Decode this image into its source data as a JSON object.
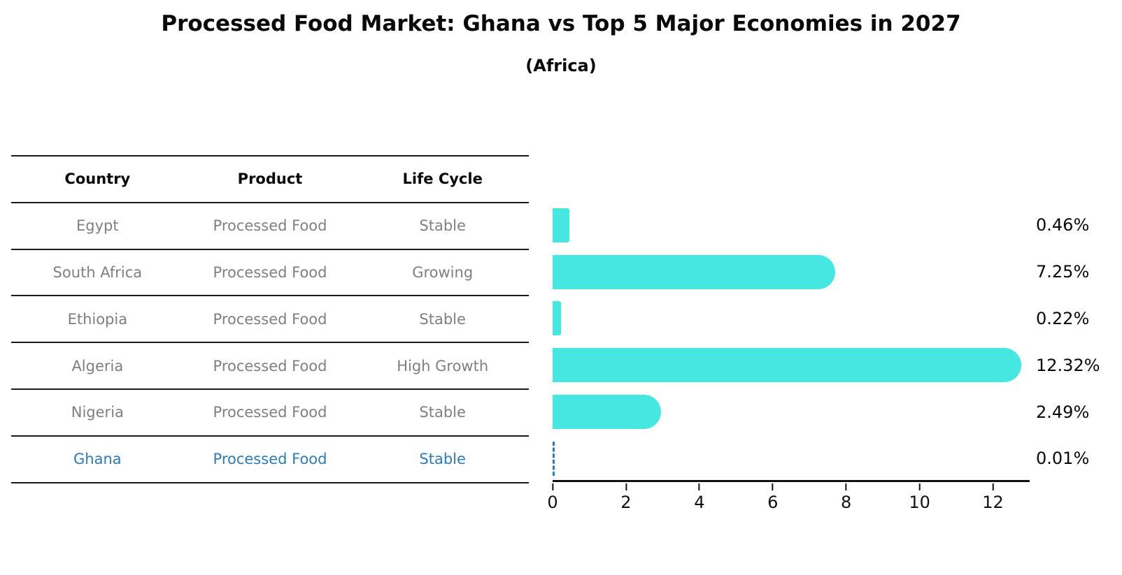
{
  "header": {
    "title": "Processed Food Market: Ghana vs Top 5 Major Economies in 2027",
    "subtitle": "(Africa)"
  },
  "table": {
    "columns": [
      "Country",
      "Product",
      "Life Cycle"
    ],
    "rows": [
      {
        "country": "Egypt",
        "product": "Processed Food",
        "life_cycle": "Stable",
        "highlight": false
      },
      {
        "country": "South Africa",
        "product": "Processed Food",
        "life_cycle": "Growing",
        "highlight": false
      },
      {
        "country": "Ethiopia",
        "product": "Processed Food",
        "life_cycle": "Stable",
        "highlight": false
      },
      {
        "country": "Algeria",
        "product": "Processed Food",
        "life_cycle": "High Growth",
        "highlight": false
      },
      {
        "country": "Nigeria",
        "product": "Processed Food",
        "life_cycle": "Stable",
        "highlight": false
      },
      {
        "country": "Ghana",
        "product": "Processed Food",
        "life_cycle": "Stable",
        "highlight": true
      }
    ]
  },
  "chart_data": {
    "type": "bar",
    "orientation": "horizontal",
    "title": "Processed Food Market: Ghana vs Top 5 Major Economies in 2027",
    "subtitle": "(Africa)",
    "categories": [
      "Egypt",
      "South Africa",
      "Ethiopia",
      "Algeria",
      "Nigeria",
      "Ghana"
    ],
    "values": [
      0.46,
      7.25,
      0.22,
      12.32,
      2.49,
      0.01
    ],
    "value_labels": [
      "0.46%",
      "7.25%",
      "0.22%",
      "12.32%",
      "2.49%",
      "0.01%"
    ],
    "xticks": [
      0,
      2,
      4,
      6,
      8,
      10,
      12
    ],
    "xlim": [
      0,
      13
    ],
    "grid": false,
    "legend": false,
    "highlight_index": 5,
    "bar_color": "#46e7e1",
    "highlight_color": "#2c7bbd",
    "muted_text_color": "#7f7f7f",
    "axis_color": "#111111"
  }
}
